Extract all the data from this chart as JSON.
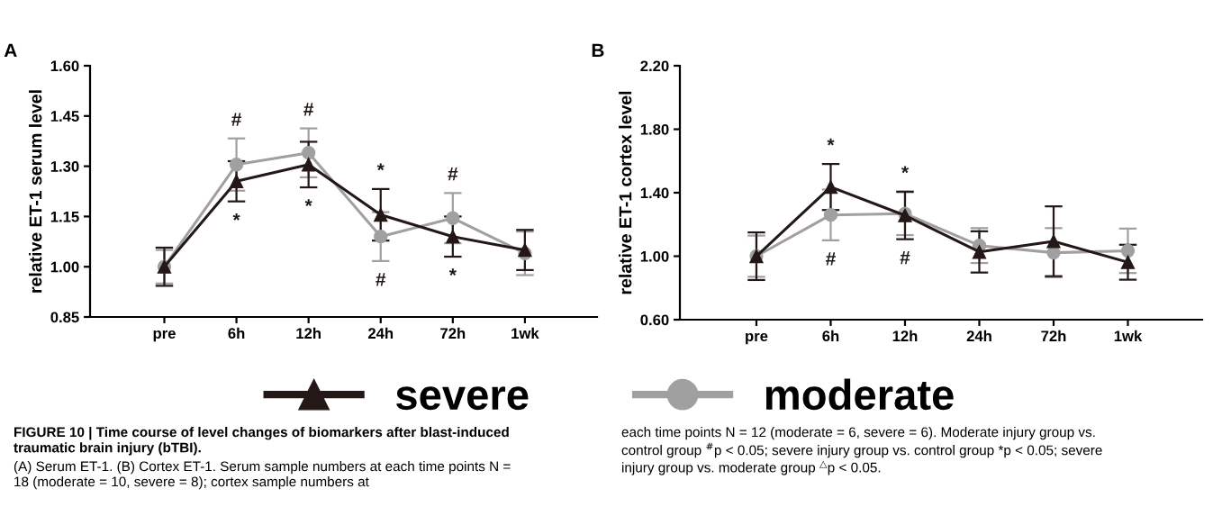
{
  "chart_data": [
    {
      "type": "line",
      "ylabel": "relative ET-1 serum level",
      "categories": [
        "pre",
        "6h",
        "12h",
        "24h",
        "72h",
        "1wk"
      ],
      "ylim": [
        0.85,
        1.6
      ],
      "yticks": [
        {
          "value": 0.85,
          "label": "0.85"
        },
        {
          "value": 1.0,
          "label": "1.00"
        },
        {
          "value": 1.15,
          "label": "1.15"
        },
        {
          "value": 1.3,
          "label": "1.30"
        },
        {
          "value": 1.45,
          "label": "1.45"
        },
        {
          "value": 1.6,
          "label": "1.60"
        }
      ],
      "grid": false,
      "legend": "bottom",
      "line_style": "solid",
      "series": [
        {
          "name": "moderate",
          "color": "#a0a0a0",
          "marker": "circle",
          "values": [
            1.0,
            1.305,
            1.34,
            1.09,
            1.145,
            1.04
          ],
          "errors": [
            0.05,
            0.078,
            0.073,
            0.073,
            0.075,
            0.065
          ],
          "value_labels": [
            null,
            "#",
            "#",
            "#",
            "#",
            null
          ]
        },
        {
          "name": "severe",
          "color": "#231815",
          "marker": "triangle",
          "values": [
            1.0,
            1.255,
            1.305,
            1.155,
            1.09,
            1.05
          ],
          "errors": [
            0.057,
            0.06,
            0.068,
            0.077,
            0.06,
            0.06
          ],
          "value_labels": [
            null,
            "*",
            "*",
            "*",
            "*",
            null
          ]
        }
      ],
      "annotations": [
        "A",
        "FIGURE 10 | Time course of level changes of biomarkers after blast-induced traumatic brain injury (bTBI).",
        "(A) Serum ET-1. (B) Cortex ET-1. Serum sample numbers at each time points N = 18 (moderate = 10, severe = 8); cortex sample numbers at",
        "each time points N = 12 (moderate = 6, severe = 6). Moderate injury group vs. control group $^{#}$p < 0.05; severe injury group vs. control group *p < 0.05; severe injury group vs. moderate group $^{△}$p < 0.05."
      ]
    },
    {
      "type": "line",
      "ylabel": "relative ET-1 cortex level",
      "categories": [
        "pre",
        "6h",
        "12h",
        "24h",
        "72h",
        "1wk"
      ],
      "ylim": [
        0.6,
        2.2
      ],
      "yticks": [
        {
          "value": 0.6,
          "label": "0.60"
        },
        {
          "value": 1.0,
          "label": "1.00"
        },
        {
          "value": 1.4,
          "label": "1.40"
        },
        {
          "value": 1.8,
          "label": "1.80"
        },
        {
          "value": 2.2,
          "label": "2.20"
        }
      ],
      "grid": false,
      "line_style": "solid",
      "series": [
        {
          "name": "moderate",
          "color": "#a0a0a0",
          "marker": "circle",
          "values": [
            1.0,
            1.26,
            1.268,
            1.067,
            1.022,
            1.034
          ],
          "errors": [
            0.13,
            0.16,
            0.135,
            0.11,
            0.155,
            0.14
          ],
          "value_labels": [
            null,
            "#",
            "#",
            null,
            null,
            null
          ]
        },
        {
          "name": "severe",
          "color": "#231815",
          "marker": "triangle",
          "values": [
            1.0,
            1.436,
            1.257,
            1.027,
            1.094,
            0.962
          ],
          "errors": [
            0.15,
            0.145,
            0.15,
            0.13,
            0.22,
            0.11
          ],
          "value_labels": [
            null,
            "*",
            "*",
            null,
            null,
            null
          ]
        }
      ],
      "annotations": [
        "B"
      ]
    }
  ]
}
